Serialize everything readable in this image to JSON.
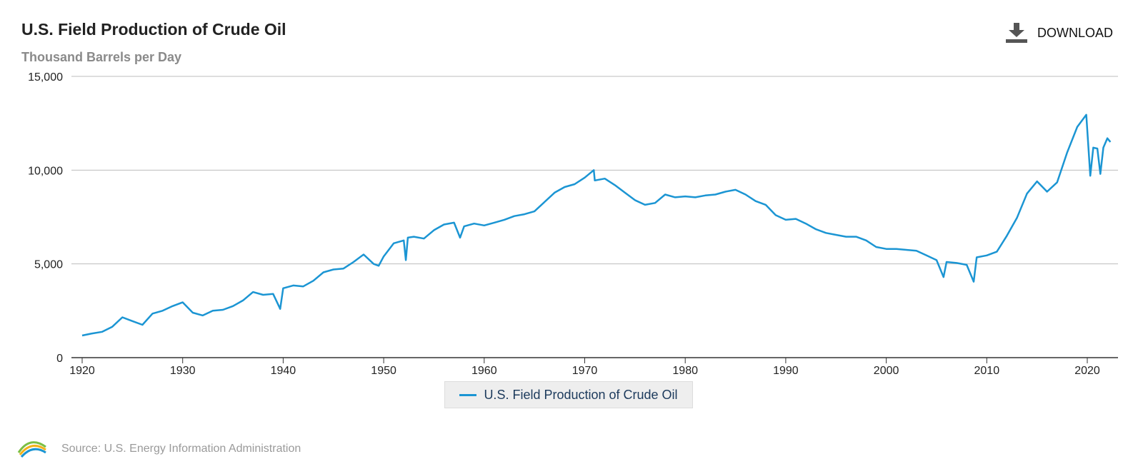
{
  "header": {
    "title": "U.S. Field Production of Crude Oil",
    "subtitle": "Thousand Barrels per Day",
    "download_label": "DOWNLOAD"
  },
  "legend": {
    "label": "U.S. Field Production of Crude Oil"
  },
  "footer": {
    "source": "Source: U.S. Energy Information Administration",
    "logo_text": "eia"
  },
  "colors": {
    "series": "#1b95d3",
    "grid": "#bdbdbd",
    "axis": "#333333"
  },
  "chart_data": {
    "type": "line",
    "title": "U.S. Field Production of Crude Oil",
    "subtitle": "Thousand Barrels per Day",
    "xlabel": "",
    "ylabel": "",
    "xlim": [
      1919,
      2023
    ],
    "ylim": [
      0,
      15000
    ],
    "x_ticks": [
      1920,
      1930,
      1940,
      1950,
      1960,
      1970,
      1980,
      1990,
      2000,
      2010,
      2020
    ],
    "y_ticks": [
      0,
      5000,
      10000,
      15000
    ],
    "y_tick_labels": [
      "0",
      "5,000",
      "10,000",
      "15,000"
    ],
    "grid": true,
    "legend_position": "bottom-center",
    "series": [
      {
        "name": "U.S. Field Production of Crude Oil",
        "x": [
          1920,
          1921,
          1922,
          1923,
          1924,
          1925,
          1926,
          1927,
          1928,
          1929,
          1930,
          1931,
          1932,
          1933,
          1934,
          1935,
          1936,
          1937,
          1938,
          1939,
          1939.7,
          1940,
          1941,
          1942,
          1943,
          1944,
          1945,
          1946,
          1947,
          1948,
          1949,
          1949.5,
          1950,
          1951,
          1952,
          1952.2,
          1952.4,
          1953,
          1954,
          1955,
          1956,
          1957,
          1957.6,
          1958,
          1959,
          1960,
          1961,
          1962,
          1963,
          1964,
          1965,
          1966,
          1967,
          1968,
          1969,
          1970,
          1970.9,
          1971,
          1972,
          1973,
          1974,
          1975,
          1976,
          1977,
          1978,
          1979,
          1980,
          1981,
          1982,
          1983,
          1984,
          1985,
          1986,
          1987,
          1988,
          1989,
          1990,
          1991,
          1992,
          1993,
          1994,
          1995,
          1996,
          1997,
          1998,
          1999,
          2000,
          2001,
          2002,
          2003,
          2004,
          2005,
          2005.7,
          2006,
          2007,
          2008,
          2008.7,
          2009,
          2010,
          2011,
          2012,
          2013,
          2014,
          2015,
          2016,
          2017,
          2018,
          2019,
          2019.9,
          2020.3,
          2020.6,
          2021,
          2021.3,
          2021.6,
          2022,
          2022.3
        ],
        "values": [
          1180,
          1290,
          1380,
          1650,
          2150,
          1950,
          1750,
          2350,
          2500,
          2750,
          2950,
          2400,
          2250,
          2500,
          2550,
          2750,
          3050,
          3500,
          3350,
          3400,
          2600,
          3700,
          3850,
          3800,
          4100,
          4550,
          4700,
          4750,
          5100,
          5500,
          5000,
          4900,
          5400,
          6100,
          6250,
          5200,
          6400,
          6450,
          6350,
          6800,
          7100,
          7200,
          6400,
          7000,
          7150,
          7050,
          7200,
          7350,
          7550,
          7650,
          7800,
          8300,
          8800,
          9100,
          9250,
          9600,
          10000,
          9450,
          9550,
          9200,
          8800,
          8400,
          8150,
          8250,
          8700,
          8550,
          8600,
          8550,
          8650,
          8700,
          8850,
          8950,
          8700,
          8350,
          8150,
          7600,
          7350,
          7400,
          7150,
          6850,
          6650,
          6550,
          6450,
          6450,
          6250,
          5900,
          5800,
          5800,
          5750,
          5700,
          5450,
          5200,
          4300,
          5100,
          5050,
          4950,
          4050,
          5350,
          5450,
          5650,
          6500,
          7450,
          8750,
          9400,
          8850,
          9350,
          10950,
          12300,
          12950,
          9700,
          11200,
          11150,
          9800,
          11200,
          11700,
          11500
        ]
      }
    ]
  }
}
